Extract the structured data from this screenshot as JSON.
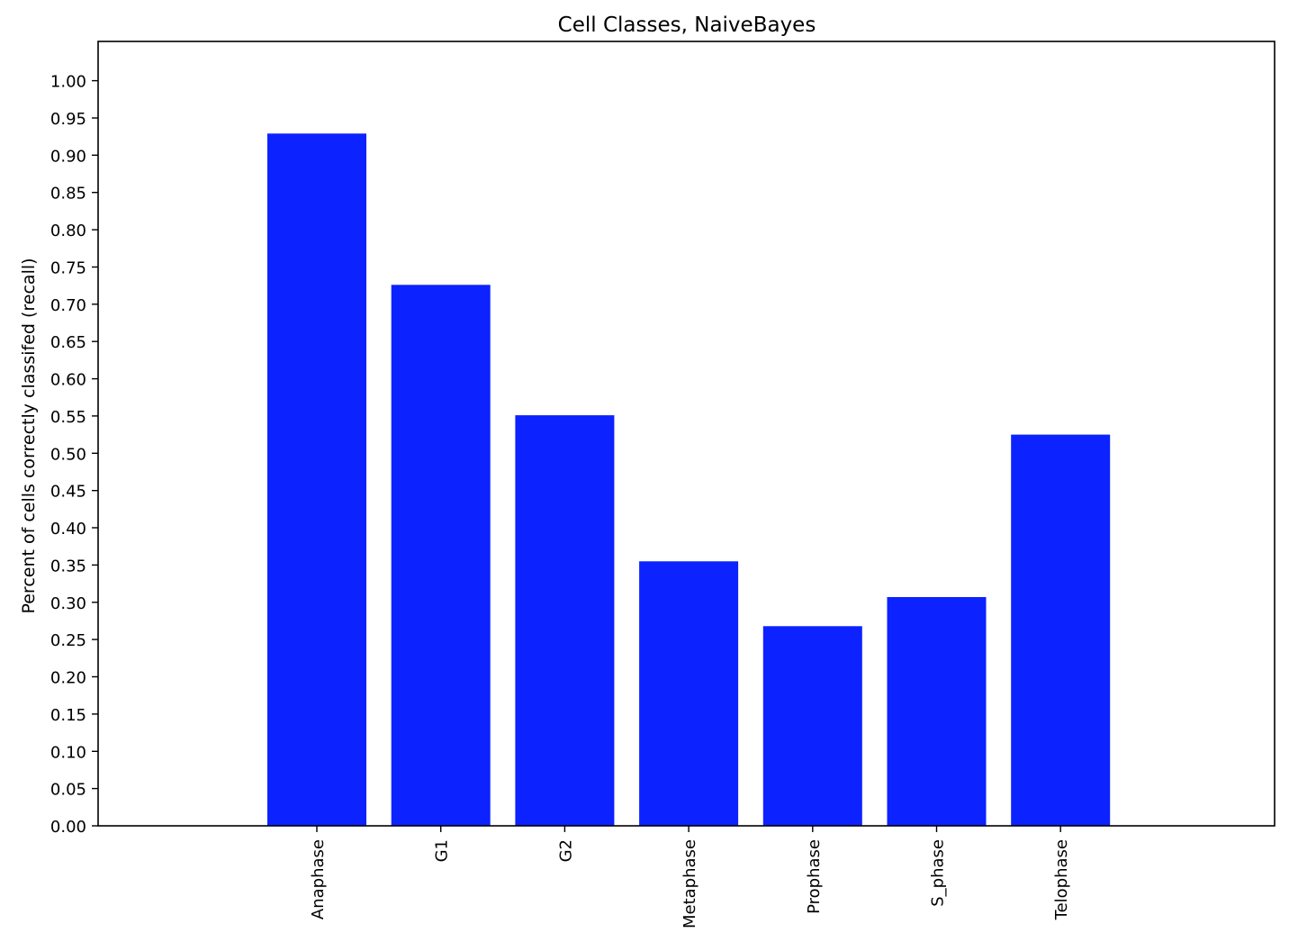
{
  "chart_data": {
    "type": "bar",
    "title": "Cell Classes, NaiveBayes",
    "xlabel": "",
    "ylabel": "Percent of cells correctly classifed (recall)",
    "categories": [
      "Anaphase",
      "G1",
      "G2",
      "Metaphase",
      "Prophase",
      "S_phase",
      "Telophase"
    ],
    "values": [
      0.929,
      0.726,
      0.551,
      0.355,
      0.268,
      0.307,
      0.525
    ],
    "ylim": [
      0,
      1.05
    ],
    "yticks": [
      "0.00",
      "0.05",
      "0.10",
      "0.15",
      "0.20",
      "0.25",
      "0.30",
      "0.35",
      "0.40",
      "0.45",
      "0.50",
      "0.55",
      "0.60",
      "0.65",
      "0.70",
      "0.75",
      "0.80",
      "0.85",
      "0.90",
      "0.95",
      "1.00"
    ],
    "bar_color": "#0c22ff",
    "grid": false,
    "legend": "none"
  }
}
